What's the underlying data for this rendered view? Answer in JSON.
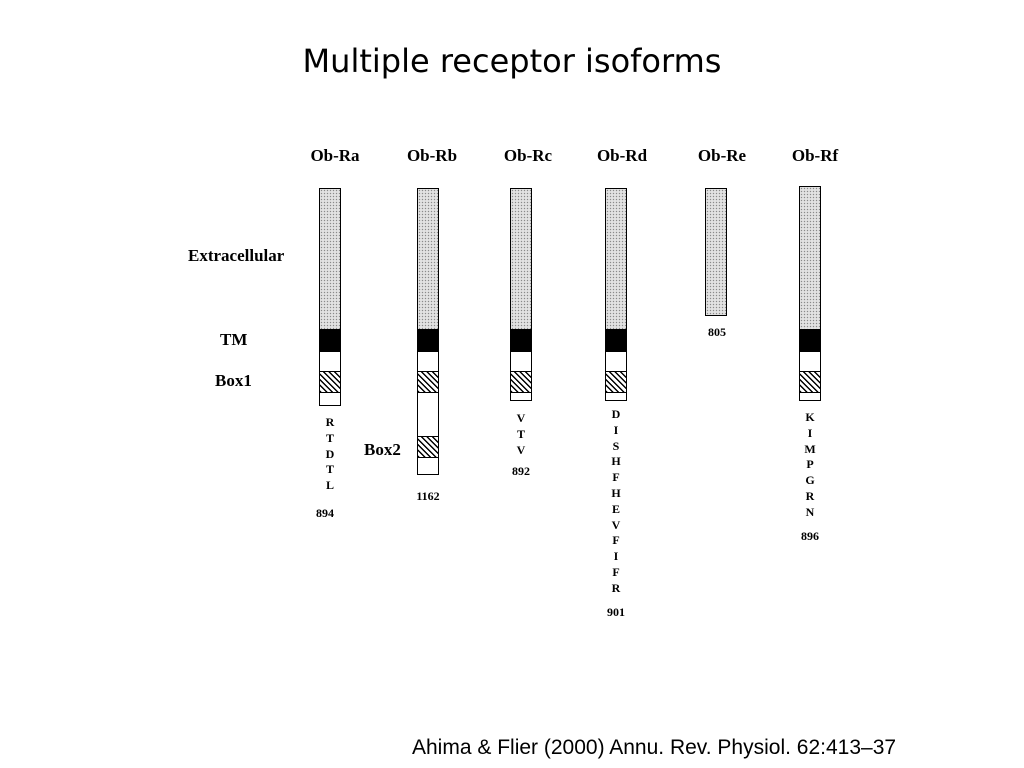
{
  "title": "Multiple receptor isoforms",
  "labels": {
    "extracellular": "Extracellular",
    "tm": "TM",
    "box1": "Box1",
    "box2": "Box2"
  },
  "isoforms": [
    {
      "name": "Ob-Ra",
      "length": "894",
      "tail": [
        "R",
        "T",
        "D",
        "T",
        "L"
      ]
    },
    {
      "name": "Ob-Rb",
      "length": "1162",
      "tail": []
    },
    {
      "name": "Ob-Rc",
      "length": "892",
      "tail": [
        "V",
        "T",
        "V"
      ]
    },
    {
      "name": "Ob-Rd",
      "length": "901",
      "tail": [
        "D",
        "I",
        "S",
        "H",
        "F",
        "H",
        "E",
        "V",
        "F",
        "I",
        "F",
        "R"
      ]
    },
    {
      "name": "Ob-Re",
      "length": "805",
      "tail": []
    },
    {
      "name": "Ob-Rf",
      "length": "896",
      "tail": [
        "K",
        "I",
        "M",
        "P",
        "G",
        "R",
        "N"
      ]
    }
  ],
  "citation": "Ahima & Flier (2000) Annu. Rev. Physiol. 62:413–37"
}
